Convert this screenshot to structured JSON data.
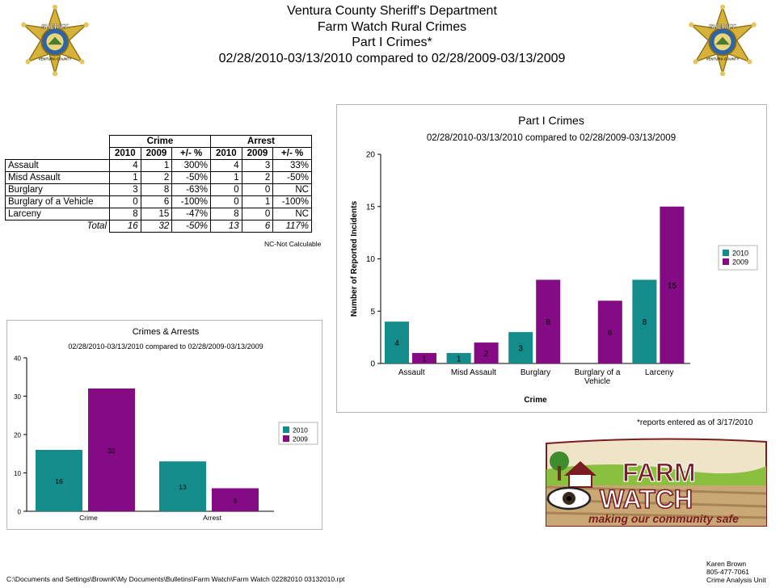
{
  "header": {
    "org": "Ventura County Sheriff's Department",
    "program": "Farm Watch Rural Crimes",
    "subtitle": "Part I Crimes*",
    "date_range": "02/28/2010-03/13/2010 compared to 02/28/2009-03/13/2009"
  },
  "badge": {
    "top_text": "SHERIFF",
    "bottom_text": "VENTURA COUNTY"
  },
  "table": {
    "group_headers": [
      "Crime",
      "Arrest"
    ],
    "sub_headers": [
      "2010",
      "2009",
      "+/- %",
      "2010",
      "2009",
      "+/- %"
    ],
    "rows": [
      {
        "label": "Assault",
        "c2010": "4",
        "c2009": "1",
        "cpct": "300%",
        "a2010": "4",
        "a2009": "3",
        "apct": "33%"
      },
      {
        "label": "Misd  Assault",
        "c2010": "1",
        "c2009": "2",
        "cpct": "-50%",
        "a2010": "1",
        "a2009": "2",
        "apct": "-50%"
      },
      {
        "label": "Burglary",
        "c2010": "3",
        "c2009": "8",
        "cpct": "-63%",
        "a2010": "0",
        "a2009": "0",
        "apct": "NC"
      },
      {
        "label": "Burglary of a Vehicle",
        "c2010": "0",
        "c2009": "6",
        "cpct": "-100%",
        "a2010": "0",
        "a2009": "1",
        "apct": "-100%"
      },
      {
        "label": "Larceny",
        "c2010": "8",
        "c2009": "15",
        "cpct": "-47%",
        "a2010": "8",
        "a2009": "0",
        "apct": "NC"
      }
    ],
    "total": {
      "label": "Total",
      "c2010": "16",
      "c2009": "32",
      "cpct": "-50%",
      "a2010": "13",
      "a2009": "6",
      "apct": "117%"
    },
    "note": "NC-Not Calculable"
  },
  "colors": {
    "y2010": "#148c8c",
    "y2009": "#850b85",
    "axis": "#000000",
    "frame": "#b5b5b5"
  },
  "chart_data": [
    {
      "type": "bar",
      "title": "Part I Crimes",
      "subtitle": "02/28/2010-03/13/2010 compared to 02/28/2009-03/13/2009",
      "xlabel": "Crime",
      "ylabel": "Number of Reported Incidents",
      "categories": [
        "Assault",
        "Misd  Assault",
        "Burglary",
        "Burglary of a Vehicle",
        "Larceny"
      ],
      "category_lines": [
        [
          "Assault"
        ],
        [
          "Misd  Assault"
        ],
        [
          "Burglary"
        ],
        [
          "Burglary of a",
          "Vehicle"
        ],
        [
          "Larceny"
        ]
      ],
      "series": [
        {
          "name": "2010",
          "values": [
            4,
            1,
            3,
            0,
            8
          ],
          "labels": [
            "4",
            "1",
            "3",
            "",
            "8"
          ]
        },
        {
          "name": "2009",
          "values": [
            1,
            2,
            8,
            6,
            15
          ],
          "labels": [
            "1",
            "2",
            "8",
            "6",
            "15"
          ]
        }
      ],
      "ylim": [
        0,
        20
      ],
      "yticks": [
        0,
        5,
        10,
        15,
        20
      ],
      "grid": false,
      "legend": "right"
    },
    {
      "type": "bar",
      "title": "Crimes & Arrests",
      "subtitle": "02/28/2010-03/13/2010 compared to 02/28/2009-03/13/2009",
      "xlabel": "",
      "ylabel": "",
      "categories": [
        "Crime",
        "Arrest"
      ],
      "category_lines": [
        [
          "Crime"
        ],
        [
          "Arrest"
        ]
      ],
      "series": [
        {
          "name": "2010",
          "values": [
            16,
            13
          ],
          "labels": [
            "16",
            "13"
          ]
        },
        {
          "name": "2009",
          "values": [
            32,
            6
          ],
          "labels": [
            "32",
            "6"
          ]
        }
      ],
      "ylim": [
        0,
        40
      ],
      "yticks": [
        0,
        10,
        20,
        30,
        40
      ],
      "grid": false,
      "legend": "right"
    }
  ],
  "report_note": "*reports entered as of 3/17/2010",
  "logo": {
    "line1": "FARM",
    "line2": "WATCH",
    "tagline": "making our community safe"
  },
  "footer": {
    "path": "C:\\Documents and Settings\\BrownK\\My Documents\\Bulletins\\Farm Watch\\Farm Watch 02282010 03132010.rpt",
    "author": [
      "Karen Brown",
      "805-477-7061",
      "Crime Analysis Unit"
    ]
  }
}
